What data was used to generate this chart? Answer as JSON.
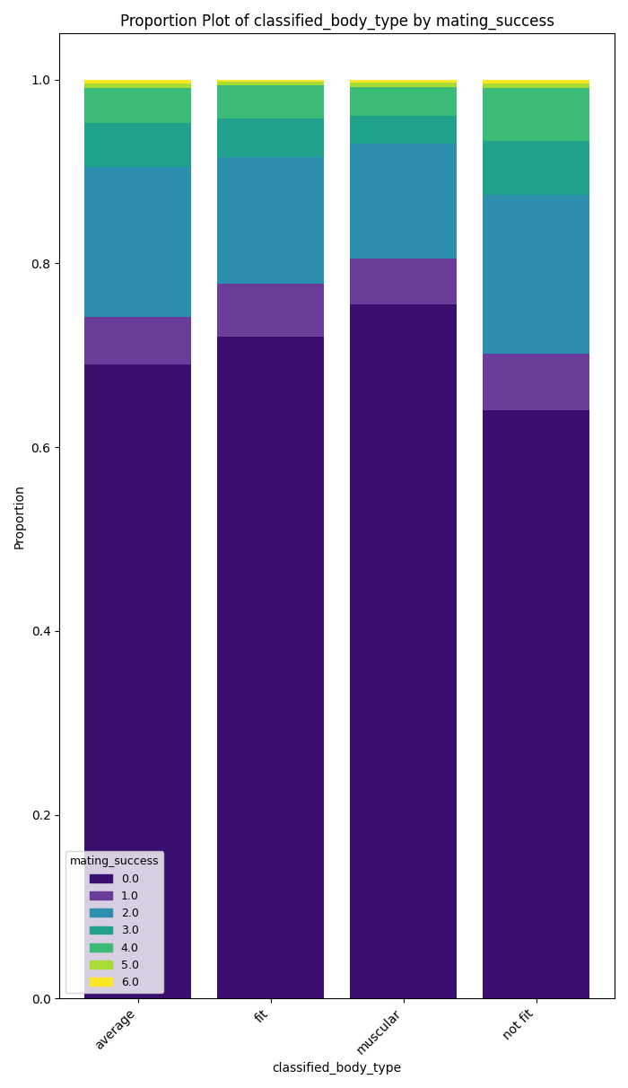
{
  "title": "Proportion Plot of classified_body_type by mating_success",
  "xlabel": "classified_body_type",
  "ylabel": "Proportion",
  "categories": [
    "average",
    "fit",
    "muscular",
    "not fit"
  ],
  "mating_success_labels": [
    "0.0",
    "1.0",
    "2.0",
    "3.0",
    "4.0",
    "5.0",
    "6.0"
  ],
  "proportions": {
    "average": [
      0.69,
      0.052,
      0.163,
      0.048,
      0.038,
      0.005,
      0.004
    ],
    "fit": [
      0.72,
      0.058,
      0.138,
      0.042,
      0.036,
      0.004,
      0.002
    ],
    "muscular": [
      0.755,
      0.05,
      0.125,
      0.03,
      0.032,
      0.005,
      0.003
    ],
    "not fit": [
      0.64,
      0.062,
      0.173,
      0.058,
      0.058,
      0.005,
      0.004
    ]
  },
  "colors": [
    "#3b0f70",
    "#6a3d9a",
    "#2c8fad",
    "#1fa18b",
    "#3bbb75",
    "#a8db34",
    "#fde725"
  ],
  "legend_title": "mating_success",
  "figsize": [
    7.0,
    12.12
  ],
  "dpi": 100,
  "ylim": [
    0.0,
    1.05
  ],
  "bar_width": 0.8
}
